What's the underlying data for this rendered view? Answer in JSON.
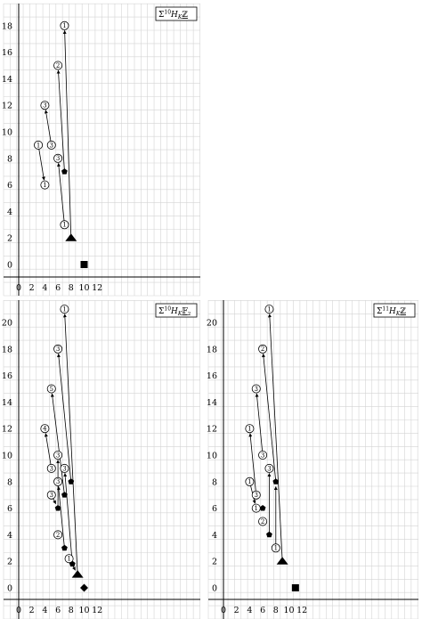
{
  "panels": [
    {
      "title_prefix": "Σ",
      "title_sup": "10",
      "title_main": "H",
      "title_sub": "K",
      "title_coef": "ℤ",
      "xticks": [
        0,
        2,
        4,
        6,
        8,
        10,
        12
      ],
      "yticks": [
        0,
        2,
        4,
        6,
        8,
        10,
        12,
        14,
        16,
        18
      ],
      "nodes": [
        {
          "x": 7,
          "y": 18,
          "label": "1"
        },
        {
          "x": 6,
          "y": 15,
          "label": "2"
        },
        {
          "x": 4,
          "y": 12,
          "label": "3"
        },
        {
          "x": 5,
          "y": 9,
          "label": "3"
        },
        {
          "x": 3,
          "y": 9,
          "label": "1"
        },
        {
          "x": 4,
          "y": 6,
          "label": "1"
        },
        {
          "x": 6,
          "y": 8,
          "label": "3"
        },
        {
          "x": 7,
          "y": 3,
          "label": "1"
        }
      ],
      "markers": [
        {
          "x": 7,
          "y": 7,
          "shape": "pentagon"
        },
        {
          "x": 8,
          "y": 2,
          "shape": "triangle"
        },
        {
          "x": 10,
          "y": 0,
          "shape": "square"
        }
      ],
      "edges": [
        {
          "from": [
            7,
            18
          ],
          "to": [
            8,
            2
          ]
        },
        {
          "from": [
            6,
            15
          ],
          "to": [
            7,
            7
          ]
        },
        {
          "from": [
            4,
            12
          ],
          "to": [
            5,
            9
          ]
        },
        {
          "from": [
            4,
            6
          ],
          "to": [
            3,
            9
          ]
        },
        {
          "from": [
            6,
            8
          ],
          "to": [
            7,
            3
          ]
        }
      ]
    },
    {
      "title_prefix": "Σ",
      "title_sup": "10",
      "title_main": "H",
      "title_sub": "K",
      "title_coef": "𝔽",
      "title_coef_sub": "2",
      "xticks": [
        0,
        2,
        4,
        6,
        8,
        10,
        12
      ],
      "yticks": [
        0,
        2,
        4,
        6,
        8,
        10,
        12,
        14,
        16,
        18,
        20
      ],
      "nodes": [
        {
          "x": 7,
          "y": 21,
          "label": "1"
        },
        {
          "x": 6,
          "y": 18,
          "label": "3"
        },
        {
          "x": 5,
          "y": 15,
          "label": "5"
        },
        {
          "x": 4,
          "y": 12,
          "label": "4"
        },
        {
          "x": 6,
          "y": 10,
          "label": "3"
        },
        {
          "x": 5,
          "y": 9,
          "label": "3"
        },
        {
          "x": 7,
          "y": 9,
          "label": "3"
        },
        {
          "x": 6,
          "y": 8,
          "label": "3"
        },
        {
          "x": 5,
          "y": 7,
          "label": "3"
        },
        {
          "x": 6,
          "y": 4,
          "label": "2"
        },
        {
          "x": 7.7,
          "y": 2.2,
          "label": "1"
        }
      ],
      "markers": [
        {
          "x": 8,
          "y": 8,
          "shape": "pentagon"
        },
        {
          "x": 7,
          "y": 7,
          "shape": "pentagon"
        },
        {
          "x": 6,
          "y": 6,
          "shape": "pentagon"
        },
        {
          "x": 7,
          "y": 3,
          "shape": "pentagon"
        },
        {
          "x": 8.2,
          "y": 1.8,
          "shape": "pentagon"
        },
        {
          "x": 9,
          "y": 1,
          "shape": "triangle"
        },
        {
          "x": 10,
          "y": 0,
          "shape": "diamond"
        }
      ],
      "edges": [
        {
          "from": [
            7,
            21
          ],
          "to": [
            9,
            1
          ]
        },
        {
          "from": [
            6,
            18
          ],
          "to": [
            8,
            8
          ]
        },
        {
          "from": [
            5,
            15
          ],
          "to": [
            7,
            7
          ]
        },
        {
          "from": [
            4,
            12
          ],
          "to": [
            5,
            9
          ]
        },
        {
          "from": [
            6,
            10
          ],
          "to": [
            6,
            6
          ]
        },
        {
          "from": [
            7,
            9
          ],
          "to": [
            8.2,
            1.8
          ]
        },
        {
          "from": [
            6,
            8
          ],
          "to": [
            7,
            3
          ]
        },
        {
          "from": [
            6,
            6
          ],
          "to": [
            5,
            7
          ]
        },
        {
          "from": [
            9,
            1
          ],
          "to": [
            7.7,
            2.2
          ]
        }
      ]
    },
    {
      "title_prefix": "Σ",
      "title_sup": "11",
      "title_main": "H",
      "title_sub": "K",
      "title_coef": "ℤ",
      "xticks": [
        0,
        2,
        4,
        6,
        8,
        10,
        12
      ],
      "yticks": [
        0,
        2,
        4,
        6,
        8,
        10,
        12,
        14,
        16,
        18,
        20
      ],
      "nodes": [
        {
          "x": 7,
          "y": 21,
          "label": "1"
        },
        {
          "x": 6,
          "y": 18,
          "label": "2"
        },
        {
          "x": 5,
          "y": 15,
          "label": "3"
        },
        {
          "x": 4,
          "y": 12,
          "label": "1"
        },
        {
          "x": 6,
          "y": 10,
          "label": "3"
        },
        {
          "x": 7,
          "y": 9,
          "label": "3"
        },
        {
          "x": 4,
          "y": 8,
          "label": "1"
        },
        {
          "x": 5,
          "y": 7,
          "label": "3"
        },
        {
          "x": 5,
          "y": 6,
          "label": "1"
        },
        {
          "x": 6,
          "y": 5,
          "label": "2"
        },
        {
          "x": 8,
          "y": 3,
          "label": "1"
        }
      ],
      "markers": [
        {
          "x": 8,
          "y": 8,
          "shape": "pentagon"
        },
        {
          "x": 6,
          "y": 6,
          "shape": "pentagon"
        },
        {
          "x": 7,
          "y": 4,
          "shape": "pentagon"
        },
        {
          "x": 9,
          "y": 2,
          "shape": "triangle"
        },
        {
          "x": 11,
          "y": 0,
          "shape": "square"
        }
      ],
      "edges": [
        {
          "from": [
            7,
            21
          ],
          "to": [
            9,
            2
          ]
        },
        {
          "from": [
            6,
            18
          ],
          "to": [
            8,
            8
          ]
        },
        {
          "from": [
            5,
            15
          ],
          "to": [
            6,
            10
          ]
        },
        {
          "from": [
            4,
            12
          ],
          "to": [
            5,
            7
          ]
        },
        {
          "from": [
            5,
            6
          ],
          "to": [
            4,
            8
          ]
        },
        {
          "from": [
            7,
            9
          ],
          "to": [
            7,
            4
          ]
        },
        {
          "from": [
            8,
            8
          ],
          "to": [
            8,
            3
          ]
        }
      ]
    }
  ]
}
